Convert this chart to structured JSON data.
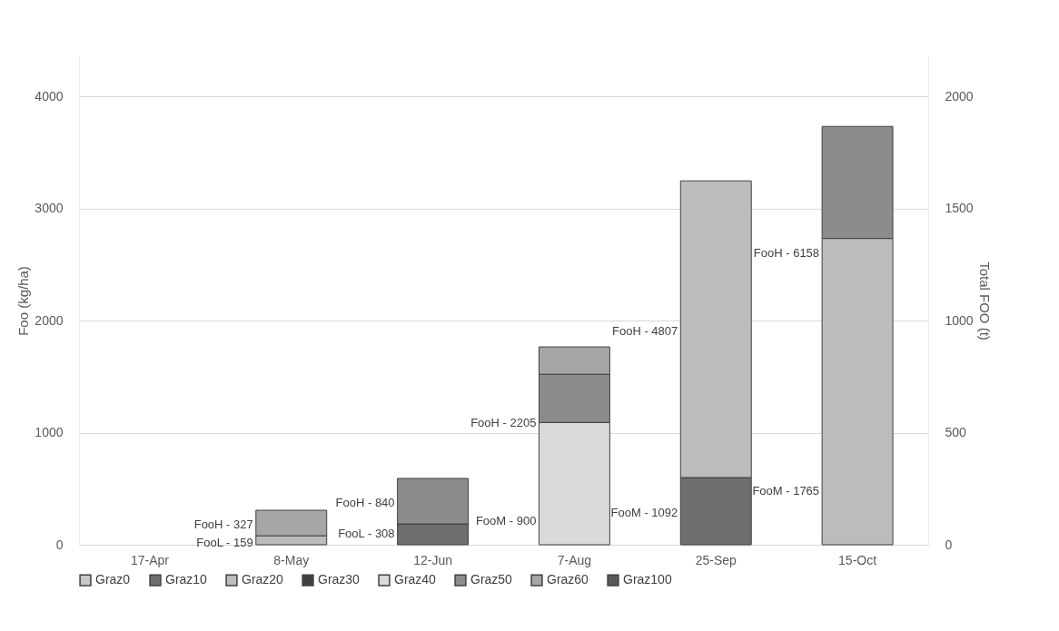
{
  "chart_data": {
    "type": "bar",
    "stacked": true,
    "categories": [
      "17-Apr",
      "8-May",
      "12-Jun",
      "7-Aug",
      "25-Sep",
      "15-Oct"
    ],
    "ylabel": "Foo (kg/ha)",
    "y2label": "Total FOO (t)",
    "ylim": [
      0,
      4360
    ],
    "yticks": [
      0,
      1000,
      2000,
      3000,
      4000
    ],
    "y2lim": [
      0,
      2180
    ],
    "y2ticks": [
      0,
      500,
      1000,
      1500,
      2000
    ],
    "grid": true,
    "legend": "bottom",
    "series": [
      {
        "name": "Graz0",
        "color": "#c8c8c8",
        "values": [
          null,
          null,
          null,
          null,
          null,
          null
        ]
      },
      {
        "name": "Graz10",
        "color": "#6e6e6e",
        "axis": "y2",
        "values": [
          null,
          null,
          93,
          null,
          300,
          null
        ]
      },
      {
        "name": "Graz20",
        "color": "#bcbcbc",
        "axis": "y2",
        "values": [
          null,
          40,
          null,
          null,
          1324,
          1367
        ]
      },
      {
        "name": "Graz30",
        "color": "#404040",
        "values": [
          null,
          null,
          null,
          null,
          null,
          null
        ]
      },
      {
        "name": "Graz40",
        "color": "#dadada",
        "axis": "y2",
        "values": [
          null,
          null,
          null,
          546,
          null,
          null
        ]
      },
      {
        "name": "Graz50",
        "color": "#8c8c8c",
        "axis": "y2",
        "values": [
          null,
          null,
          203,
          215,
          null,
          500
        ]
      },
      {
        "name": "Graz60",
        "color": "#a6a6a6",
        "axis": "y2",
        "values": [
          null,
          114,
          null,
          122,
          null,
          null
        ]
      },
      {
        "name": "Graz100",
        "color": "#595959",
        "values": [
          null,
          null,
          null,
          null,
          null,
          null
        ]
      }
    ],
    "annotations": [
      "FooL - 159",
      "FooH - 327",
      "FooL - 308",
      "FooH - 840",
      "FooM - 900",
      "FooH - 2205",
      "FooM - 1092",
      "FooH - 4807",
      "FooM - 1765",
      "FooH - 6158"
    ]
  }
}
